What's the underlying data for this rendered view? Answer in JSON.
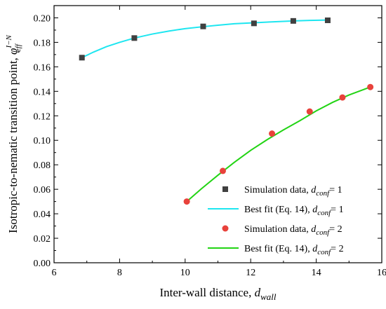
{
  "chart_data": {
    "type": "scatter",
    "xlabel": {
      "main": "Inter-wall distance, ",
      "sym": "d",
      "sub": "wall"
    },
    "ylabel": {
      "main": "Isotropic-to-nematic transition point, ",
      "sym": "φ",
      "sub": "eff",
      "sup": "I−N"
    },
    "xlim": [
      6,
      16
    ],
    "ylim": [
      0.0,
      0.21
    ],
    "xticks": [
      6,
      8,
      10,
      12,
      14,
      16
    ],
    "yticks": [
      0.0,
      0.02,
      0.04,
      0.06,
      0.08,
      0.1,
      0.12,
      0.14,
      0.16,
      0.18,
      0.2
    ],
    "ytick_labels": [
      "0.00",
      "0.02",
      "0.04",
      "0.06",
      "0.08",
      "0.10",
      "0.12",
      "0.14",
      "0.16",
      "0.18",
      "0.20"
    ],
    "xtick_labels": [
      "6",
      "8",
      "10",
      "12",
      "14",
      "16"
    ],
    "series": [
      {
        "kind": "points",
        "marker": "square",
        "color": "#404040",
        "x": [
          6.85,
          8.45,
          10.55,
          12.1,
          13.3,
          14.35
        ],
        "y": [
          0.1675,
          0.1835,
          0.193,
          0.1955,
          0.1975,
          0.198
        ]
      },
      {
        "kind": "line",
        "color": "#1EE6F0",
        "x": [
          6.85,
          7.2,
          7.6,
          8.0,
          8.45,
          9.0,
          9.5,
          10.0,
          10.55,
          11.0,
          11.5,
          12.1,
          12.7,
          13.3,
          13.8,
          14.35
        ],
        "y": [
          0.1675,
          0.172,
          0.1765,
          0.18,
          0.1835,
          0.1868,
          0.1892,
          0.1912,
          0.1928,
          0.194,
          0.1952,
          0.196,
          0.1968,
          0.1975,
          0.1979,
          0.1982
        ]
      },
      {
        "kind": "points",
        "marker": "circle",
        "color": "#E8423B",
        "x": [
          10.05,
          11.15,
          12.65,
          13.8,
          14.8,
          15.65
        ],
        "y": [
          0.05,
          0.075,
          0.1055,
          0.1235,
          0.135,
          0.1435
        ]
      },
      {
        "kind": "line",
        "color": "#22D414",
        "x": [
          10.05,
          10.5,
          11.0,
          11.5,
          12.0,
          12.5,
          13.0,
          13.5,
          14.0,
          14.5,
          15.0,
          15.65
        ],
        "y": [
          0.05,
          0.0605,
          0.0715,
          0.082,
          0.0918,
          0.1005,
          0.1085,
          0.116,
          0.124,
          0.131,
          0.137,
          0.1435
        ]
      }
    ],
    "legend": {
      "position": "bottom-right",
      "entries": [
        {
          "marker": "square",
          "color": "#404040",
          "text": "Simulation data, ",
          "sym": "d",
          "sub": "conf",
          "tail": "= 1"
        },
        {
          "marker": "line",
          "color": "#1EE6F0",
          "text": "Best fit (Eq. 14), ",
          "sym": "d",
          "sub": "conf",
          "tail": "= 1"
        },
        {
          "marker": "circle",
          "color": "#E8423B",
          "text": "Simulation data, ",
          "sym": "d",
          "sub": "conf",
          "tail": "= 2"
        },
        {
          "marker": "line",
          "color": "#22D414",
          "text": "Best fit (Eq. 14), ",
          "sym": "d",
          "sub": "conf",
          "tail": "= 2"
        }
      ]
    }
  }
}
